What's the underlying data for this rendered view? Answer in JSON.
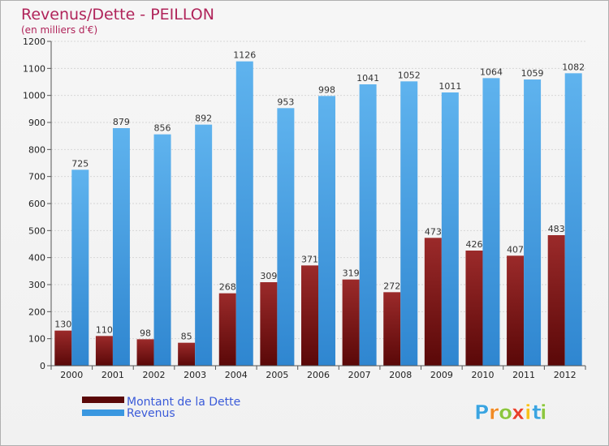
{
  "chart_data": {
    "type": "bar",
    "title": "Revenus/Dette - PEILLON",
    "subtitle": "(en milliers d'€)",
    "categories": [
      "2000",
      "2001",
      "2002",
      "2003",
      "2004",
      "2005",
      "2006",
      "2007",
      "2008",
      "2009",
      "2010",
      "2011",
      "2012"
    ],
    "series": [
      {
        "name": "Montant de la Dette",
        "color": "#8b1a1a",
        "values": [
          130,
          110,
          98,
          85,
          268,
          309,
          371,
          319,
          272,
          473,
          426,
          407,
          483
        ]
      },
      {
        "name": "Revenus",
        "color": "#4aa3e8",
        "values": [
          725,
          879,
          856,
          892,
          1126,
          953,
          998,
          1041,
          1052,
          1011,
          1064,
          1059,
          1082
        ]
      }
    ],
    "ylim": [
      0,
      1200
    ],
    "yticks": [
      0,
      100,
      200,
      300,
      400,
      500,
      600,
      700,
      800,
      900,
      1000,
      1100,
      1200
    ],
    "grid": true,
    "legend": "bottom-left"
  },
  "logo": {
    "letters": [
      "P",
      "r",
      "o",
      "x",
      "i",
      "t",
      "i"
    ],
    "colors": [
      "#3ba4e0",
      "#f08a24",
      "#8cc63f",
      "#e8412c",
      "#f7c11a",
      "#3ba4e0",
      "#8cc63f"
    ]
  }
}
